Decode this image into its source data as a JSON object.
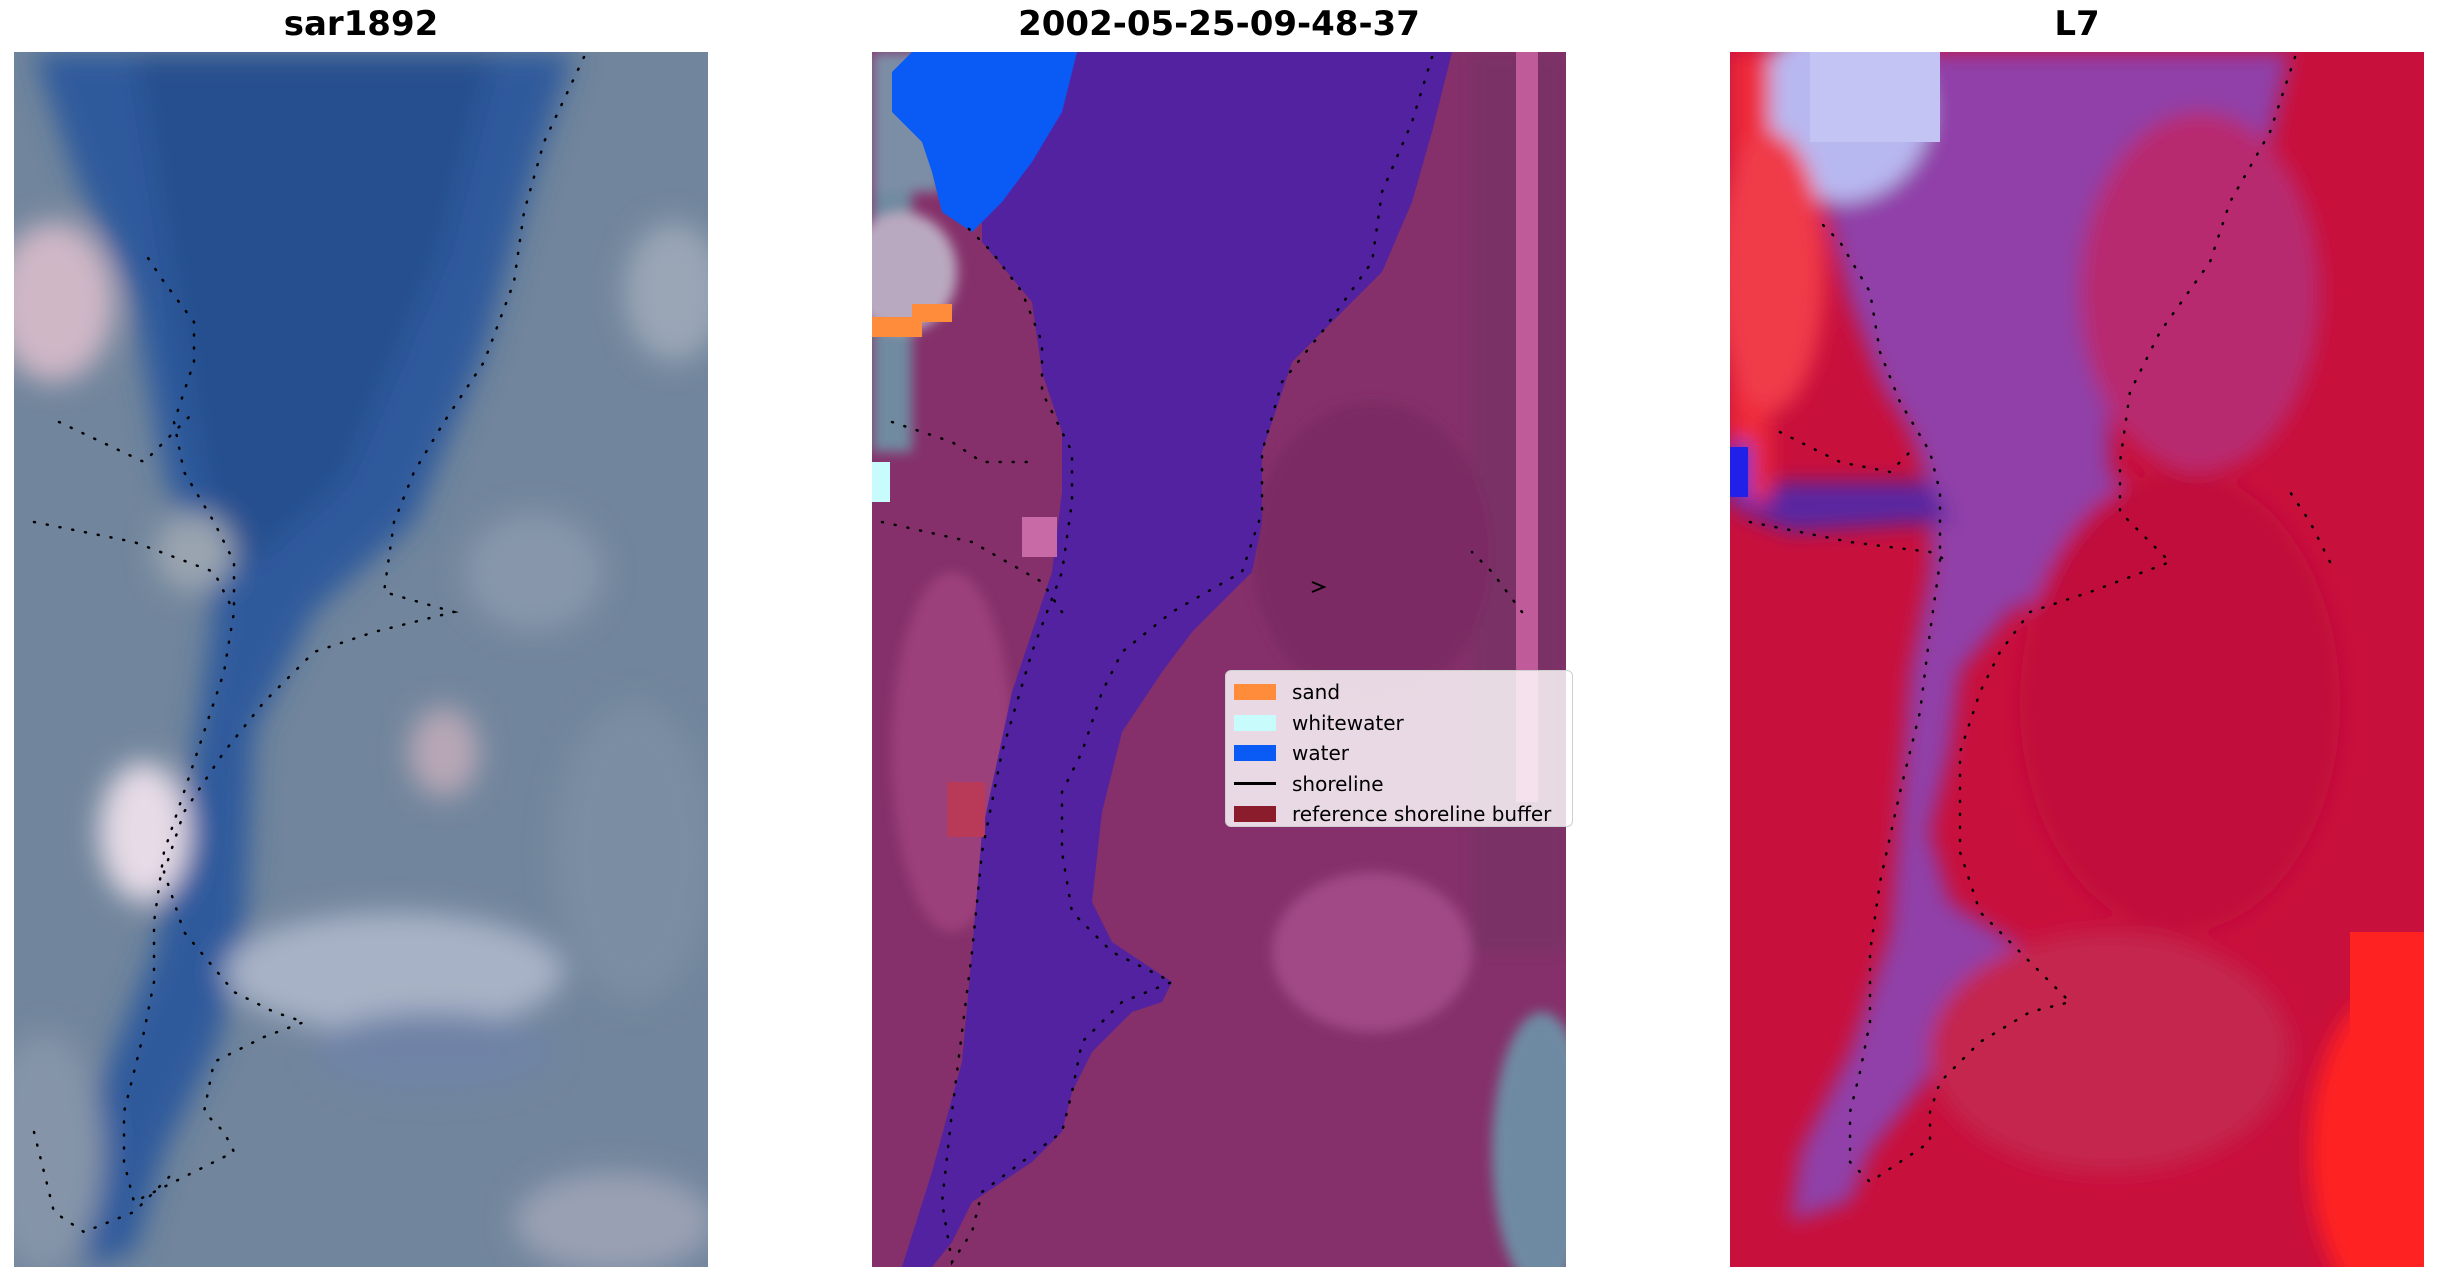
{
  "panels": [
    {
      "title": "sar1892"
    },
    {
      "title": "2002-05-25-09-48-37"
    },
    {
      "title": "L7"
    }
  ],
  "legend": {
    "entries": [
      {
        "label": "sand",
        "color": "#ff8c3a",
        "kind": "patch"
      },
      {
        "label": "whitewater",
        "color": "#c8fbfb",
        "kind": "patch"
      },
      {
        "label": "water",
        "color": "#0a5af5",
        "kind": "patch"
      },
      {
        "label": "shoreline",
        "color": "#000000",
        "kind": "line"
      },
      {
        "label": "reference shoreline buffer",
        "color": "#8b1c2c",
        "kind": "patch"
      }
    ]
  },
  "colors": {
    "rgb_water": "#3c64a0",
    "rgb_land": "#6e849c",
    "class_water": "#5222a0",
    "class_land": "#85306a",
    "index_red": "#c8103c",
    "index_purple": "#9040a8"
  }
}
